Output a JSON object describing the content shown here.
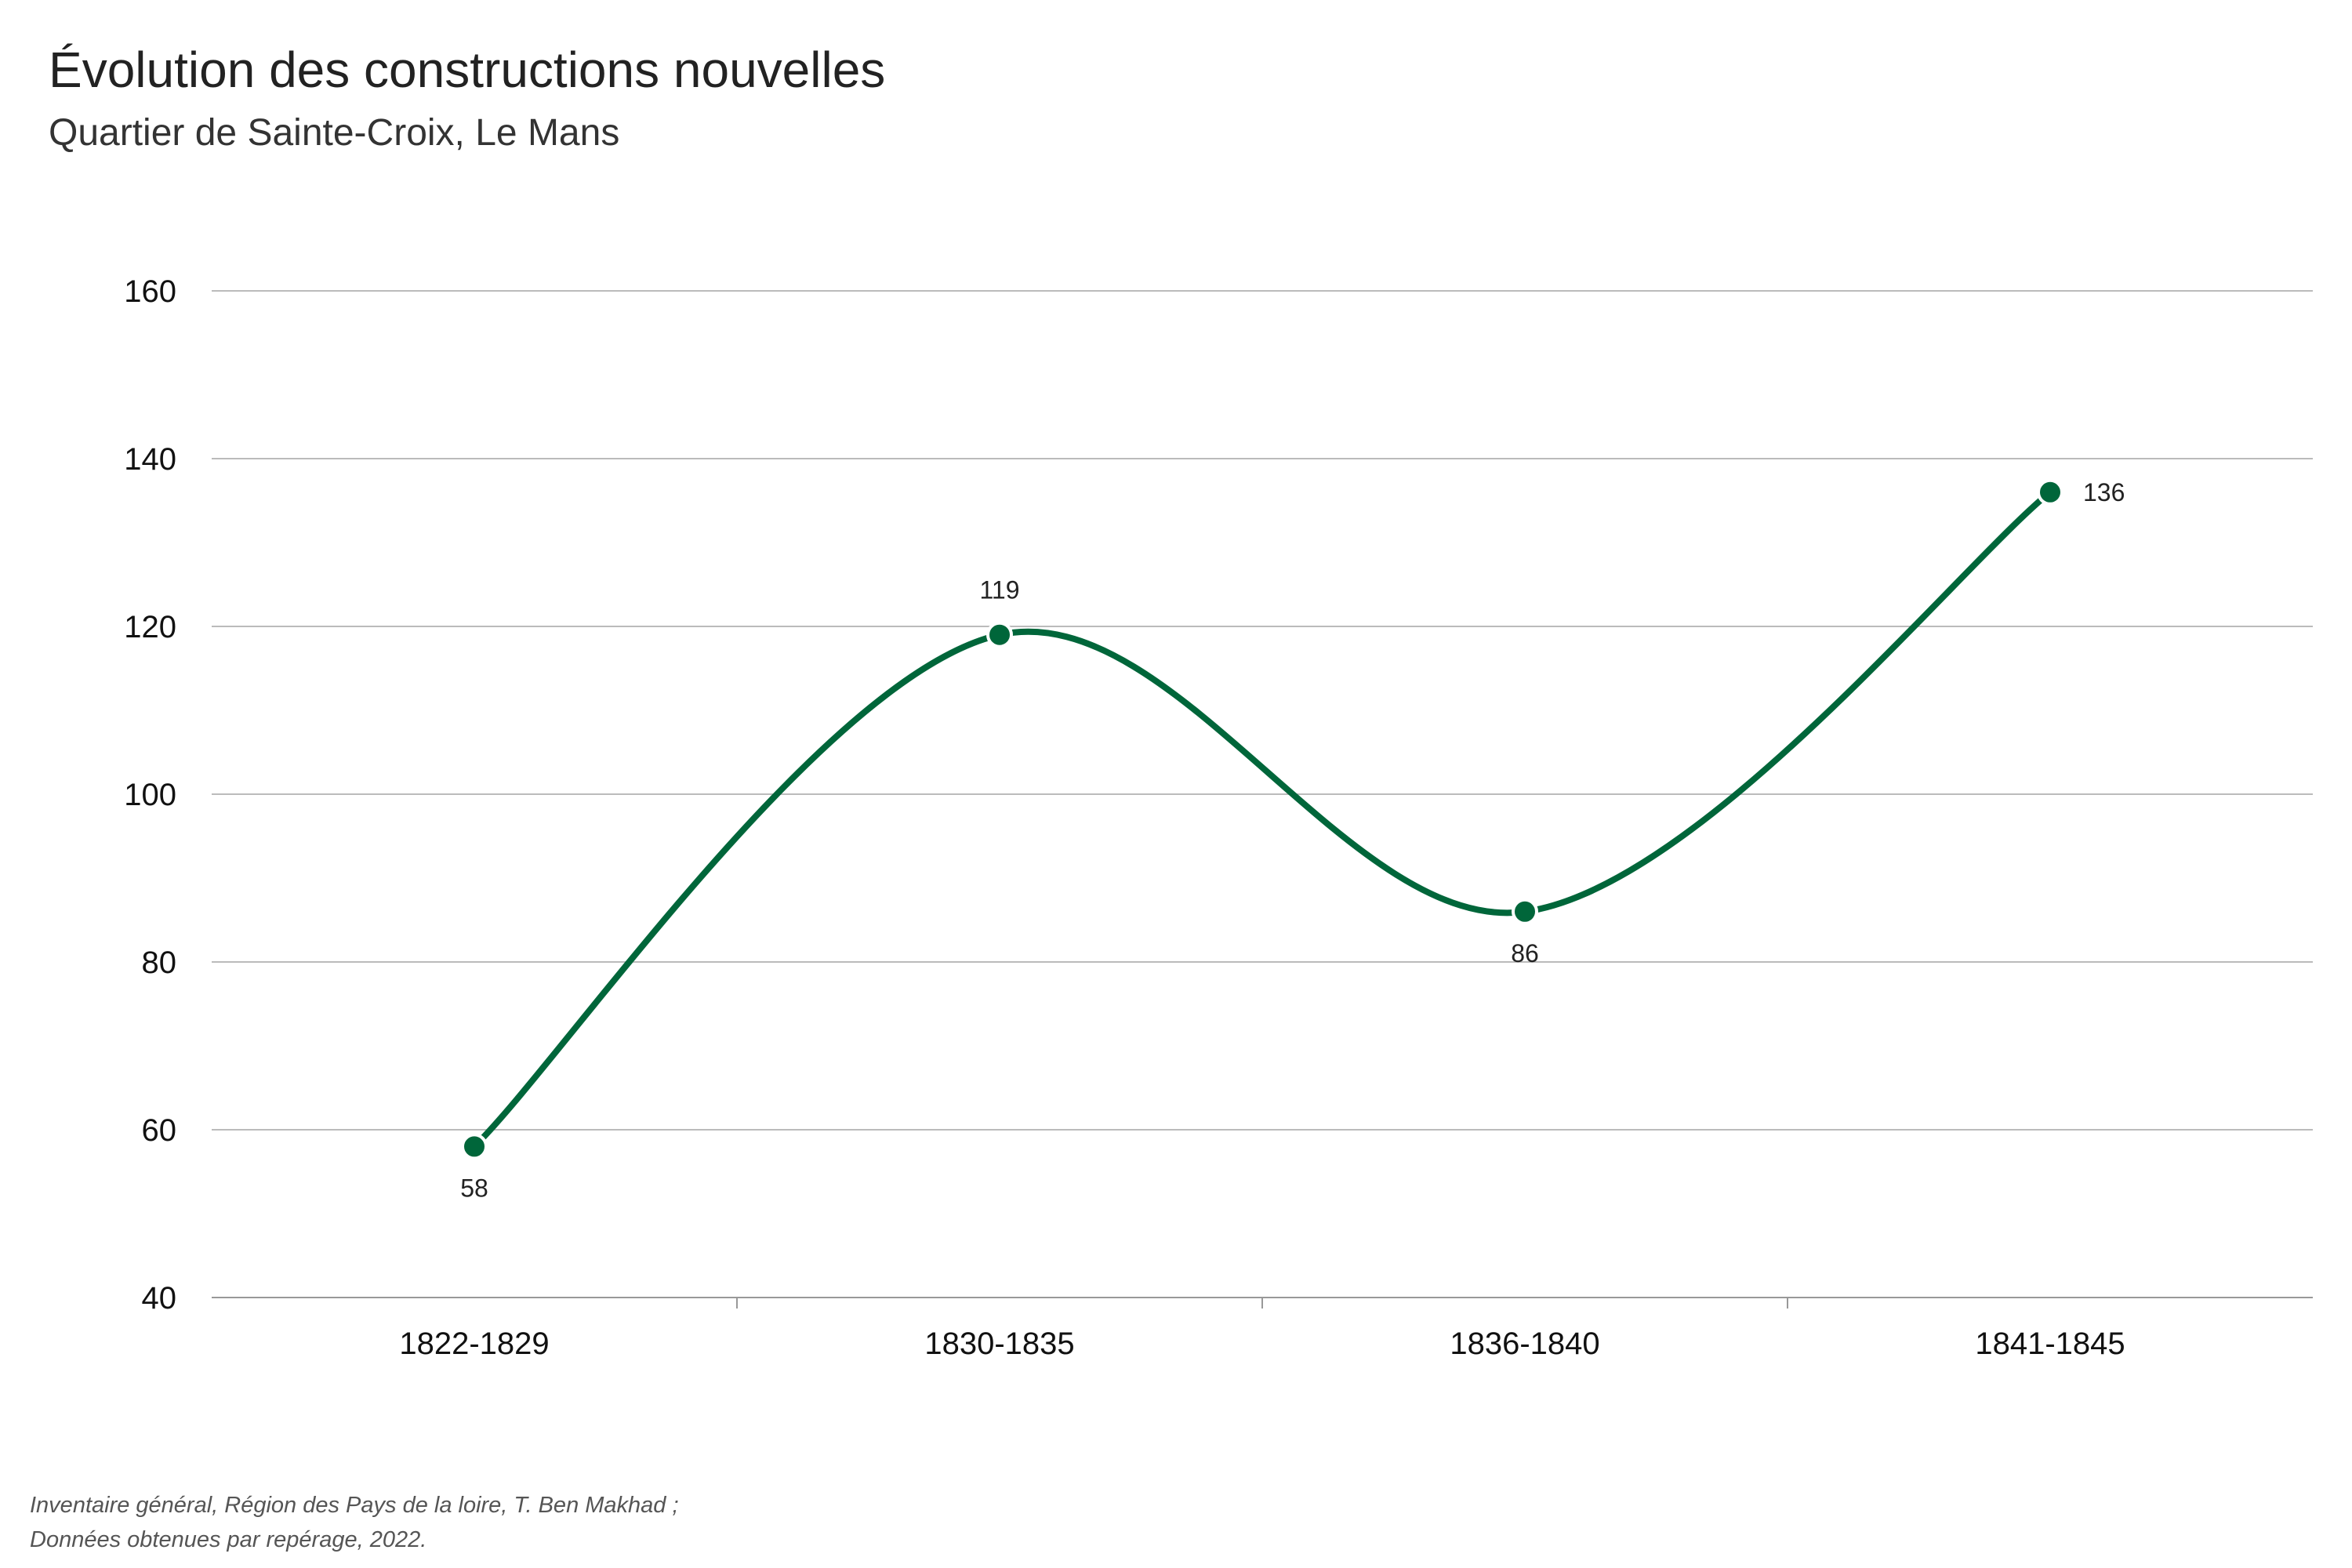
{
  "header": {
    "title": "Évolution des constructions nouvelles",
    "subtitle": "Quartier de Sainte-Croix, Le Mans"
  },
  "footer": {
    "source_line1": "Inventaire général, Région des Pays de la loire, T. Ben Makhad ;",
    "source_line2": "Données obtenues par repérage, 2022."
  },
  "colors": {
    "series": "#00663a",
    "grid": "#bbbbbb",
    "marker_outline": "#ffffff"
  },
  "chart_data": {
    "type": "line",
    "title": "Évolution des constructions nouvelles",
    "subtitle": "Quartier de Sainte-Croix, Le Mans",
    "xlabel": "",
    "ylabel": "",
    "categories": [
      "1822-1829",
      "1830-1835",
      "1836-1840",
      "1841-1845"
    ],
    "series": [
      {
        "values": [
          58,
          119,
          86,
          136
        ]
      }
    ],
    "ylim": [
      40,
      160
    ],
    "yticks": [
      40,
      60,
      80,
      100,
      120,
      140,
      160
    ],
    "grid": true,
    "smooth": true,
    "data_labels": [
      "58",
      "119",
      "86",
      "136"
    ]
  }
}
